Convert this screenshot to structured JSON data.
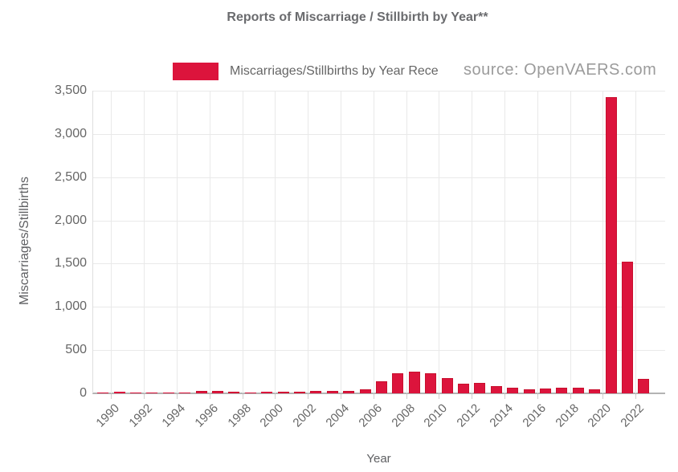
{
  "title": "Reports of Miscarriage / Stillbirth by Year**",
  "legend": {
    "label": "Miscarriages/Stillbirths by Year Rece"
  },
  "source_label": "source: OpenVAERS.com",
  "colors": {
    "bar_fill": "#dc143c",
    "bar_border": "#c8102e",
    "grid": "#e9e9e9",
    "axis_line": "#b3b3b3",
    "text": "#666666",
    "source_text": "#9b9b9b"
  },
  "chart_data": {
    "type": "bar",
    "title": "Reports of Miscarriage / Stillbirth by Year**",
    "xlabel": "Year",
    "ylabel": "Miscarriages/Stillbirths",
    "legend_position": "top",
    "grid": true,
    "ylim": [
      0,
      3500
    ],
    "ytick_step": 500,
    "xtick_labels": [
      "1990",
      "1992",
      "1994",
      "1996",
      "1998",
      "2000",
      "2002",
      "2004",
      "2006",
      "2008",
      "2010",
      "2012",
      "2014",
      "2016",
      "2018",
      "2020",
      "2022"
    ],
    "categories": [
      1990,
      1991,
      1992,
      1993,
      1994,
      1995,
      1996,
      1997,
      1998,
      1999,
      2000,
      2001,
      2002,
      2003,
      2004,
      2005,
      2006,
      2007,
      2008,
      2009,
      2010,
      2011,
      2012,
      2013,
      2014,
      2015,
      2016,
      2017,
      2018,
      2019,
      2020,
      2021,
      2022,
      2023
    ],
    "values": [
      8,
      16,
      8,
      5,
      6,
      8,
      30,
      24,
      22,
      6,
      16,
      20,
      22,
      26,
      28,
      24,
      48,
      135,
      230,
      250,
      228,
      178,
      112,
      120,
      84,
      66,
      48,
      55,
      62,
      68,
      50,
      3430,
      1520,
      165
    ],
    "series": [
      {
        "name": "Miscarriages/Stillbirths by Year Received",
        "values": [
          8,
          16,
          8,
          5,
          6,
          8,
          30,
          24,
          22,
          6,
          16,
          20,
          22,
          26,
          28,
          24,
          48,
          135,
          230,
          250,
          228,
          178,
          112,
          120,
          84,
          66,
          48,
          55,
          62,
          68,
          50,
          3430,
          1520,
          165
        ]
      }
    ]
  }
}
